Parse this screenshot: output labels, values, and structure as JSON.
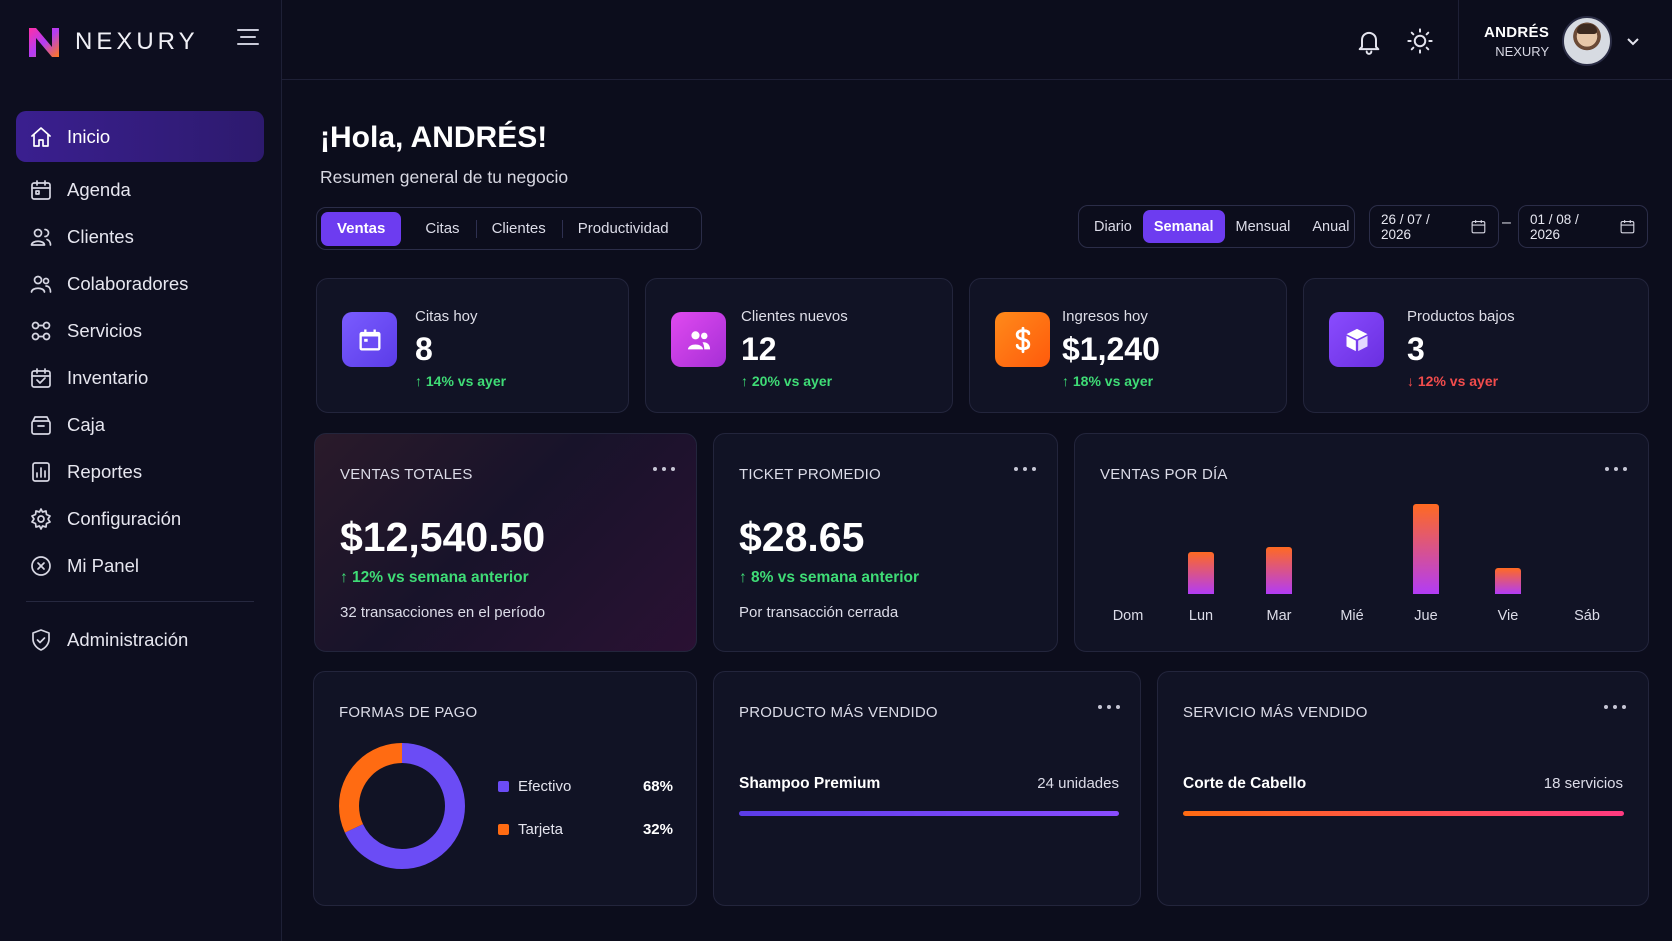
{
  "brand": {
    "name": "NEXURY"
  },
  "sidebar": {
    "items": [
      {
        "label": "Inicio",
        "icon": "home-icon",
        "active": true
      },
      {
        "label": "Agenda",
        "icon": "calendar-icon"
      },
      {
        "label": "Clientes",
        "icon": "users-icon"
      },
      {
        "label": "Colaboradores",
        "icon": "team-icon"
      },
      {
        "label": "Servicios",
        "icon": "services-icon"
      },
      {
        "label": "Inventario",
        "icon": "inventory-icon"
      },
      {
        "label": "Caja",
        "icon": "cashbox-icon"
      },
      {
        "label": "Reportes",
        "icon": "reports-icon"
      },
      {
        "label": "Configuración",
        "icon": "gear-icon"
      },
      {
        "label": "Mi Panel",
        "icon": "panel-icon"
      }
    ],
    "admin": {
      "label": "Administración",
      "icon": "shield-icon"
    }
  },
  "topbar": {
    "user": {
      "name": "ANDRÉS",
      "org": "NEXURY"
    }
  },
  "header": {
    "greeting": "¡Hola, ANDRÉS!",
    "subtitle": "Resumen general de tu negocio"
  },
  "tabs": [
    "Ventas",
    "Citas",
    "Clientes",
    "Productividad"
  ],
  "period": {
    "options": [
      "Diario",
      "Semanal",
      "Mensual",
      "Anual"
    ],
    "selected": "Semanal"
  },
  "dates": {
    "from": "26 / 07 / 2026",
    "to": "01 / 08 / 2026",
    "separator": "–"
  },
  "stats": [
    {
      "label": "Citas hoy",
      "value": "8",
      "trend": "↑ 14% vs ayer",
      "direction": "up",
      "icon": "calendar-icon",
      "color": "#6b4cf5"
    },
    {
      "label": "Clientes nuevos",
      "value": "12",
      "trend": "↑ 20% vs ayer",
      "direction": "up",
      "icon": "users-icon",
      "color": "#c63ae6"
    },
    {
      "label": "Ingresos hoy",
      "value": "$1,240",
      "trend": "↑ 18% vs ayer",
      "direction": "up",
      "icon": "dollar-icon",
      "color": "#ff6b12"
    },
    {
      "label": "Productos bajos",
      "value": "3",
      "trend": "↓ 12% vs ayer",
      "direction": "down",
      "icon": "box-icon",
      "color": "#7a3cf0"
    }
  ],
  "ventas_totales": {
    "title": "VENTAS TOTALES",
    "value": "$12,540.50",
    "trend": "↑ 12% vs semana anterior",
    "note": "32 transacciones en el período"
  },
  "ticket_promedio": {
    "title": "TICKET PROMEDIO",
    "value": "$28.65",
    "trend": "↑ 8% vs semana anterior",
    "note": "Por transacción cerrada"
  },
  "ventas_dia": {
    "title": "VENTAS POR DÍA",
    "chart_data": {
      "type": "bar",
      "categories": [
        "Dom",
        "Lun",
        "Mar",
        "Mié",
        "Jue",
        "Vie",
        "Sáb"
      ],
      "values": [
        0,
        42,
        47,
        0,
        90,
        26,
        0
      ],
      "title": "VENTAS POR DÍA",
      "ylim": [
        0,
        90
      ],
      "grid": false
    }
  },
  "formas_pago": {
    "title": "FORMAS DE PAGO",
    "chart_data": {
      "type": "pie",
      "categories": [
        "Efectivo",
        "Tarjeta"
      ],
      "values": [
        68,
        32
      ],
      "colors": [
        "#6b4cf5",
        "#ff6b12"
      ]
    },
    "legend": [
      {
        "label": "Efectivo",
        "pct": "68%",
        "color": "#6b4cf5"
      },
      {
        "label": "Tarjeta",
        "pct": "32%",
        "color": "#ff6b12"
      }
    ]
  },
  "producto": {
    "title": "PRODUCTO MÁS VENDIDO",
    "item": "Shampoo Premium",
    "count": "24 unidades"
  },
  "servicio": {
    "title": "SERVICIO MÁS VENDIDO",
    "item": "Corte de Cabello",
    "count": "18 servicios"
  }
}
